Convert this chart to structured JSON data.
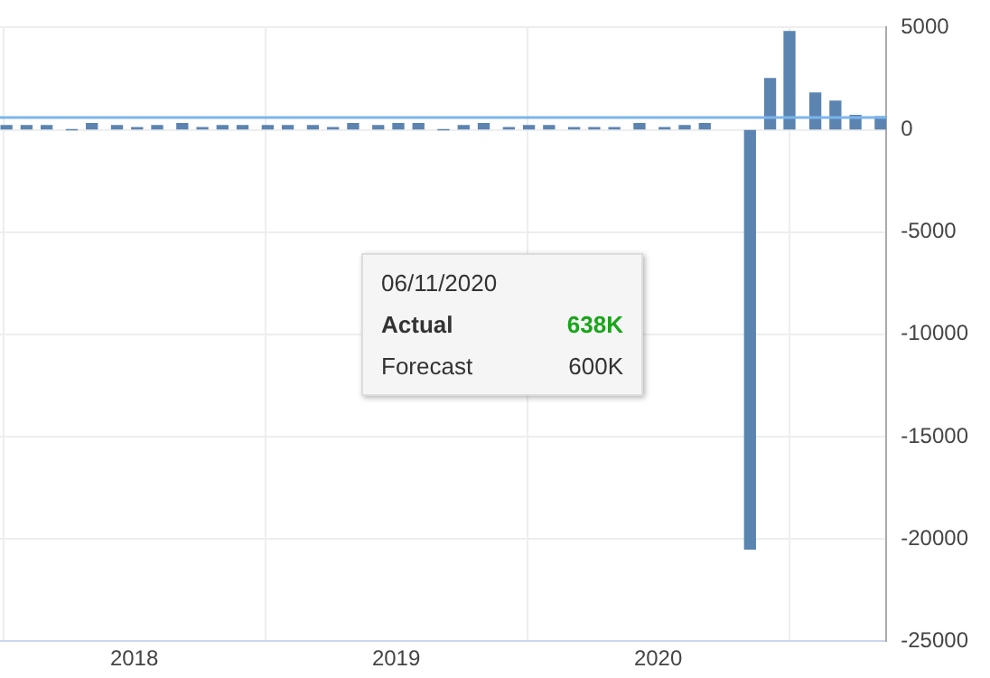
{
  "chart_data": {
    "type": "bar",
    "x": [
      "2017-07-07",
      "2017-08-04",
      "2017-09-01",
      "2017-10-06",
      "2017-11-03",
      "2017-12-08",
      "2018-01-05",
      "2018-02-02",
      "2018-03-09",
      "2018-04-06",
      "2018-05-04",
      "2018-06-01",
      "2018-07-06",
      "2018-08-03",
      "2018-09-07",
      "2018-10-05",
      "2018-11-02",
      "2018-12-07",
      "2019-01-04",
      "2019-02-01",
      "2019-03-08",
      "2019-04-05",
      "2019-05-03",
      "2019-06-07",
      "2019-07-05",
      "2019-08-02",
      "2019-09-06",
      "2019-10-04",
      "2019-11-01",
      "2019-12-06",
      "2020-01-10",
      "2020-02-07",
      "2020-03-06",
      "2020-04-03",
      "2020-05-08",
      "2020-06-05",
      "2020-07-02",
      "2020-08-07",
      "2020-09-04",
      "2020-10-02",
      "2020-11-06"
    ],
    "series": [
      {
        "color": "#5b84b1",
        "values": [
          200,
          200,
          200,
          0,
          300,
          200,
          100,
          200,
          300,
          100,
          200,
          200,
          200,
          200,
          200,
          100,
          300,
          200,
          300,
          300,
          0,
          200,
          300,
          100,
          200,
          200,
          100,
          100,
          100,
          300,
          100,
          200,
          300,
          null,
          -20500,
          2500,
          4800,
          1800,
          1400,
          700,
          638
        ]
      }
    ],
    "xlim": [
      "2017-06-28",
      "2020-11-14"
    ],
    "xticks": [
      "2018",
      "2019",
      "2020"
    ],
    "ylim": [
      -25000,
      5000
    ],
    "yticks": [
      5000,
      0,
      -5000,
      -10000,
      -15000,
      -20000,
      -25000
    ],
    "ref_lines": [
      {
        "axis": "y",
        "value": 600,
        "color": "#7cb5ec"
      }
    ],
    "annotations": [
      "06/11/2020",
      "Actual",
      "638K",
      "Forecast",
      "600K"
    ],
    "grid": true,
    "legend": false
  }
}
